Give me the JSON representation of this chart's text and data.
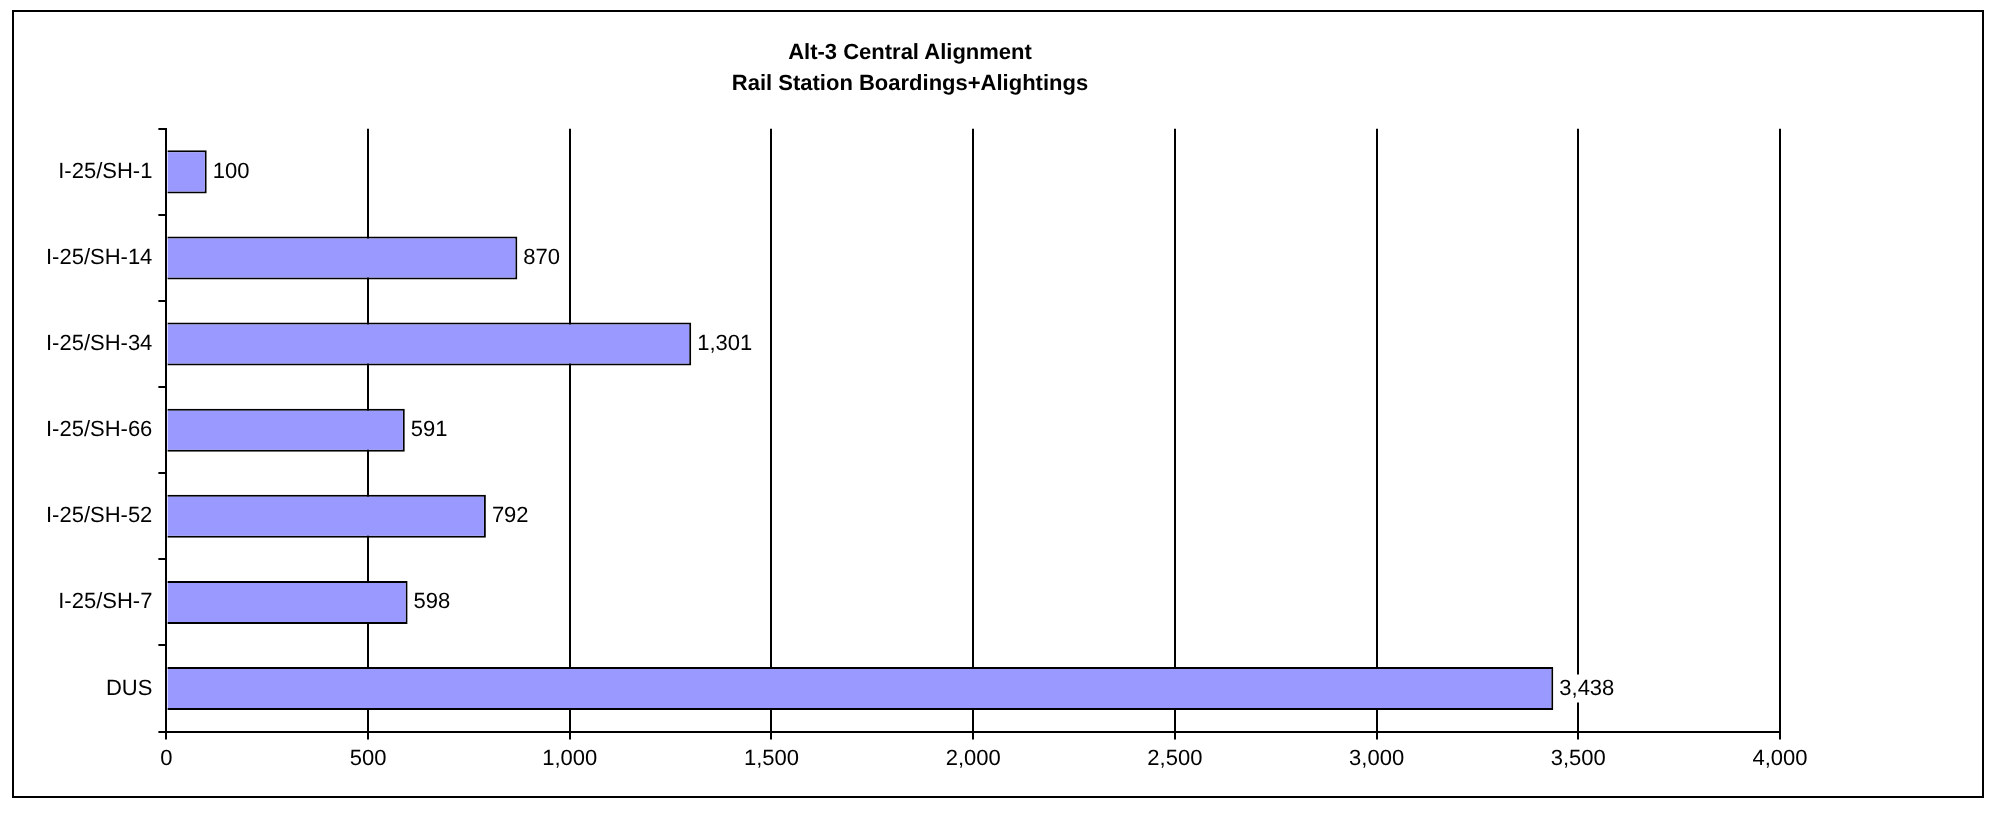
{
  "chart_data": {
    "type": "bar",
    "orientation": "horizontal",
    "title": "Alt-3 Central Alignment",
    "subtitle": "Rail Station Boardings+Alightings",
    "categories": [
      "I-25/SH-1",
      "I-25/SH-14",
      "I-25/SH-34",
      "I-25/SH-66",
      "I-25/SH-52",
      "I-25/SH-7",
      "DUS"
    ],
    "values": [
      100,
      870,
      1301,
      591,
      792,
      598,
      3438
    ],
    "color": "#9999ff",
    "xlim": [
      0,
      4000
    ],
    "xticks": [
      {
        "value": 0,
        "label": "0"
      },
      {
        "value": 500,
        "label": "500"
      },
      {
        "value": 1000,
        "label": "1,000"
      },
      {
        "value": 1500,
        "label": "1,500"
      },
      {
        "value": 2000,
        "label": "2,000"
      },
      {
        "value": 2500,
        "label": "2,500"
      },
      {
        "value": 3000,
        "label": "3,000"
      },
      {
        "value": 3500,
        "label": "3,500"
      },
      {
        "value": 4000,
        "label": "4,000"
      }
    ],
    "value_labels": [
      "100",
      "870",
      "1,301",
      "591",
      "792",
      "598",
      "3,438"
    ],
    "grid": "x",
    "legend": false
  }
}
